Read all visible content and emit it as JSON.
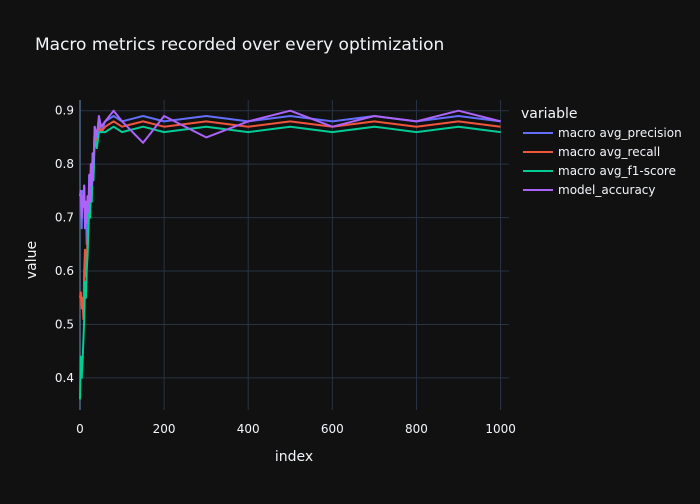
{
  "chart_data": {
    "type": "line",
    "title": "Macro metrics recorded over every optimization",
    "xlabel": "index",
    "ylabel": "value",
    "xlim": [
      0,
      1020
    ],
    "ylim": [
      0.34,
      0.92
    ],
    "x_ticks": [
      0,
      200,
      400,
      600,
      800,
      1000
    ],
    "y_ticks": [
      0.4,
      0.5,
      0.6,
      0.7,
      0.8,
      0.9
    ],
    "grid": true,
    "legend_title": "variable",
    "legend_position": "right",
    "x": [
      0,
      2,
      4,
      6,
      8,
      10,
      12,
      14,
      16,
      18,
      20,
      22,
      24,
      26,
      28,
      30,
      32,
      35,
      40,
      45,
      50,
      60,
      80,
      100,
      150,
      200,
      300,
      400,
      500,
      600,
      700,
      800,
      900,
      1000
    ],
    "series": [
      {
        "name": "macro avg_precision",
        "color": "#636efa",
        "values": [
          0.74,
          0.75,
          0.68,
          0.75,
          0.73,
          0.76,
          0.7,
          0.72,
          0.65,
          0.74,
          0.7,
          0.78,
          0.72,
          0.8,
          0.75,
          0.82,
          0.79,
          0.87,
          0.85,
          0.88,
          0.86,
          0.88,
          0.89,
          0.88,
          0.89,
          0.88,
          0.89,
          0.88,
          0.89,
          0.88,
          0.89,
          0.88,
          0.89,
          0.88
        ]
      },
      {
        "name": "macro avg_recall",
        "color": "#ef553b",
        "values": [
          0.55,
          0.56,
          0.53,
          0.55,
          0.51,
          0.6,
          0.64,
          0.59,
          0.62,
          0.66,
          0.7,
          0.75,
          0.72,
          0.79,
          0.74,
          0.81,
          0.78,
          0.86,
          0.84,
          0.87,
          0.86,
          0.87,
          0.88,
          0.87,
          0.88,
          0.87,
          0.88,
          0.87,
          0.88,
          0.87,
          0.88,
          0.87,
          0.88,
          0.87
        ]
      },
      {
        "name": "macro avg_f1-score",
        "color": "#00cc96",
        "values": [
          0.36,
          0.44,
          0.4,
          0.43,
          0.47,
          0.51,
          0.58,
          0.55,
          0.6,
          0.63,
          0.68,
          0.72,
          0.7,
          0.76,
          0.73,
          0.8,
          0.77,
          0.85,
          0.83,
          0.86,
          0.86,
          0.86,
          0.87,
          0.86,
          0.87,
          0.86,
          0.87,
          0.86,
          0.87,
          0.86,
          0.87,
          0.86,
          0.87,
          0.86
        ]
      },
      {
        "name": "model_accuracy",
        "color": "#ab63fa",
        "values": [
          0.74,
          0.75,
          0.7,
          0.74,
          0.72,
          0.76,
          0.68,
          0.73,
          0.69,
          0.74,
          0.71,
          0.78,
          0.73,
          0.8,
          0.76,
          0.82,
          0.8,
          0.87,
          0.85,
          0.89,
          0.87,
          0.88,
          0.9,
          0.88,
          0.84,
          0.89,
          0.85,
          0.88,
          0.9,
          0.87,
          0.89,
          0.88,
          0.9,
          0.88
        ]
      }
    ]
  }
}
